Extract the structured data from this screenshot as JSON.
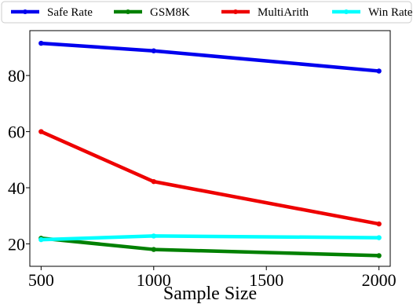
{
  "chart_data": {
    "type": "line",
    "title": "",
    "xlabel": "Sample Size",
    "ylabel": "",
    "x": [
      500,
      1000,
      2000
    ],
    "xlim": [
      450,
      2050
    ],
    "ylim": [
      12,
      96
    ],
    "xticks": [
      500,
      1000,
      1500,
      2000
    ],
    "yticks": [
      20,
      40,
      60,
      80
    ],
    "grid": false,
    "legend_placement": "top, outside plot, single row",
    "series": [
      {
        "name": "Safe Rate",
        "color": "#0000ee",
        "values": [
          91.5,
          88.8,
          81.6
        ]
      },
      {
        "name": "GSM8K",
        "color": "#008000",
        "values": [
          22.0,
          18.0,
          15.8
        ]
      },
      {
        "name": "MultiArith",
        "color": "#ee0000",
        "values": [
          60.0,
          42.2,
          27.1
        ]
      },
      {
        "name": "Win Rate",
        "color": "#00ffff",
        "values": [
          21.5,
          22.8,
          22.2
        ]
      }
    ]
  }
}
